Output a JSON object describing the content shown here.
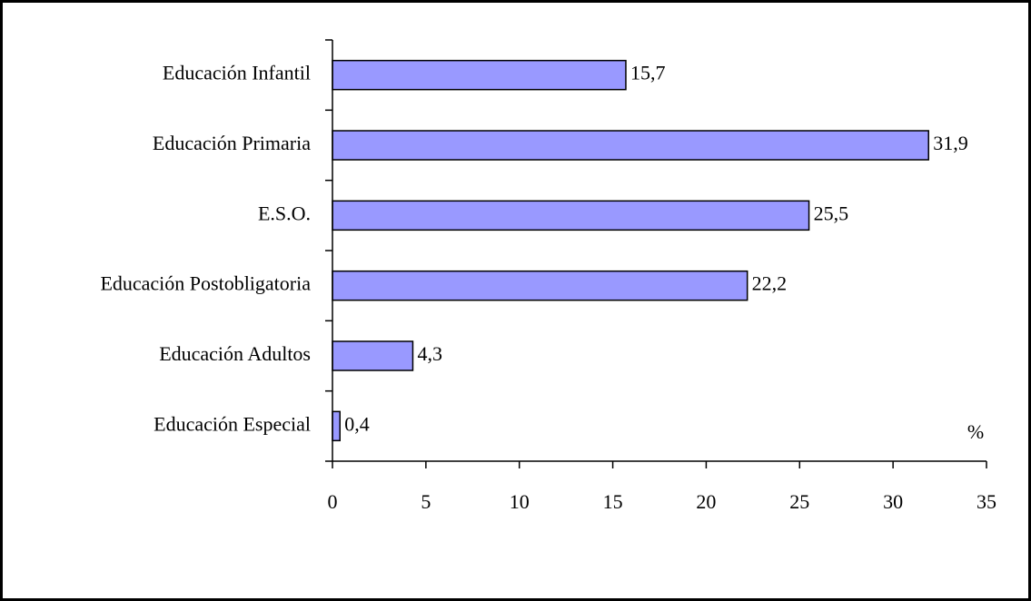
{
  "chart_data": {
    "type": "bar",
    "orientation": "horizontal",
    "categories": [
      "Educación Infantil",
      "Educación Primaria",
      "E.S.O.",
      "Educación Postobligatoria",
      "Educación Adultos",
      "Educación Especial"
    ],
    "values": [
      15.7,
      31.9,
      25.5,
      22.2,
      4.3,
      0.4
    ],
    "value_labels": [
      "15,7",
      "31,9",
      "25,5",
      "22,2",
      "4,3",
      "0,4"
    ],
    "color": "#9999ff",
    "xlim": [
      0,
      35
    ],
    "xticks": [
      0,
      5,
      10,
      15,
      20,
      25,
      30,
      35
    ],
    "xlabel": "%"
  }
}
